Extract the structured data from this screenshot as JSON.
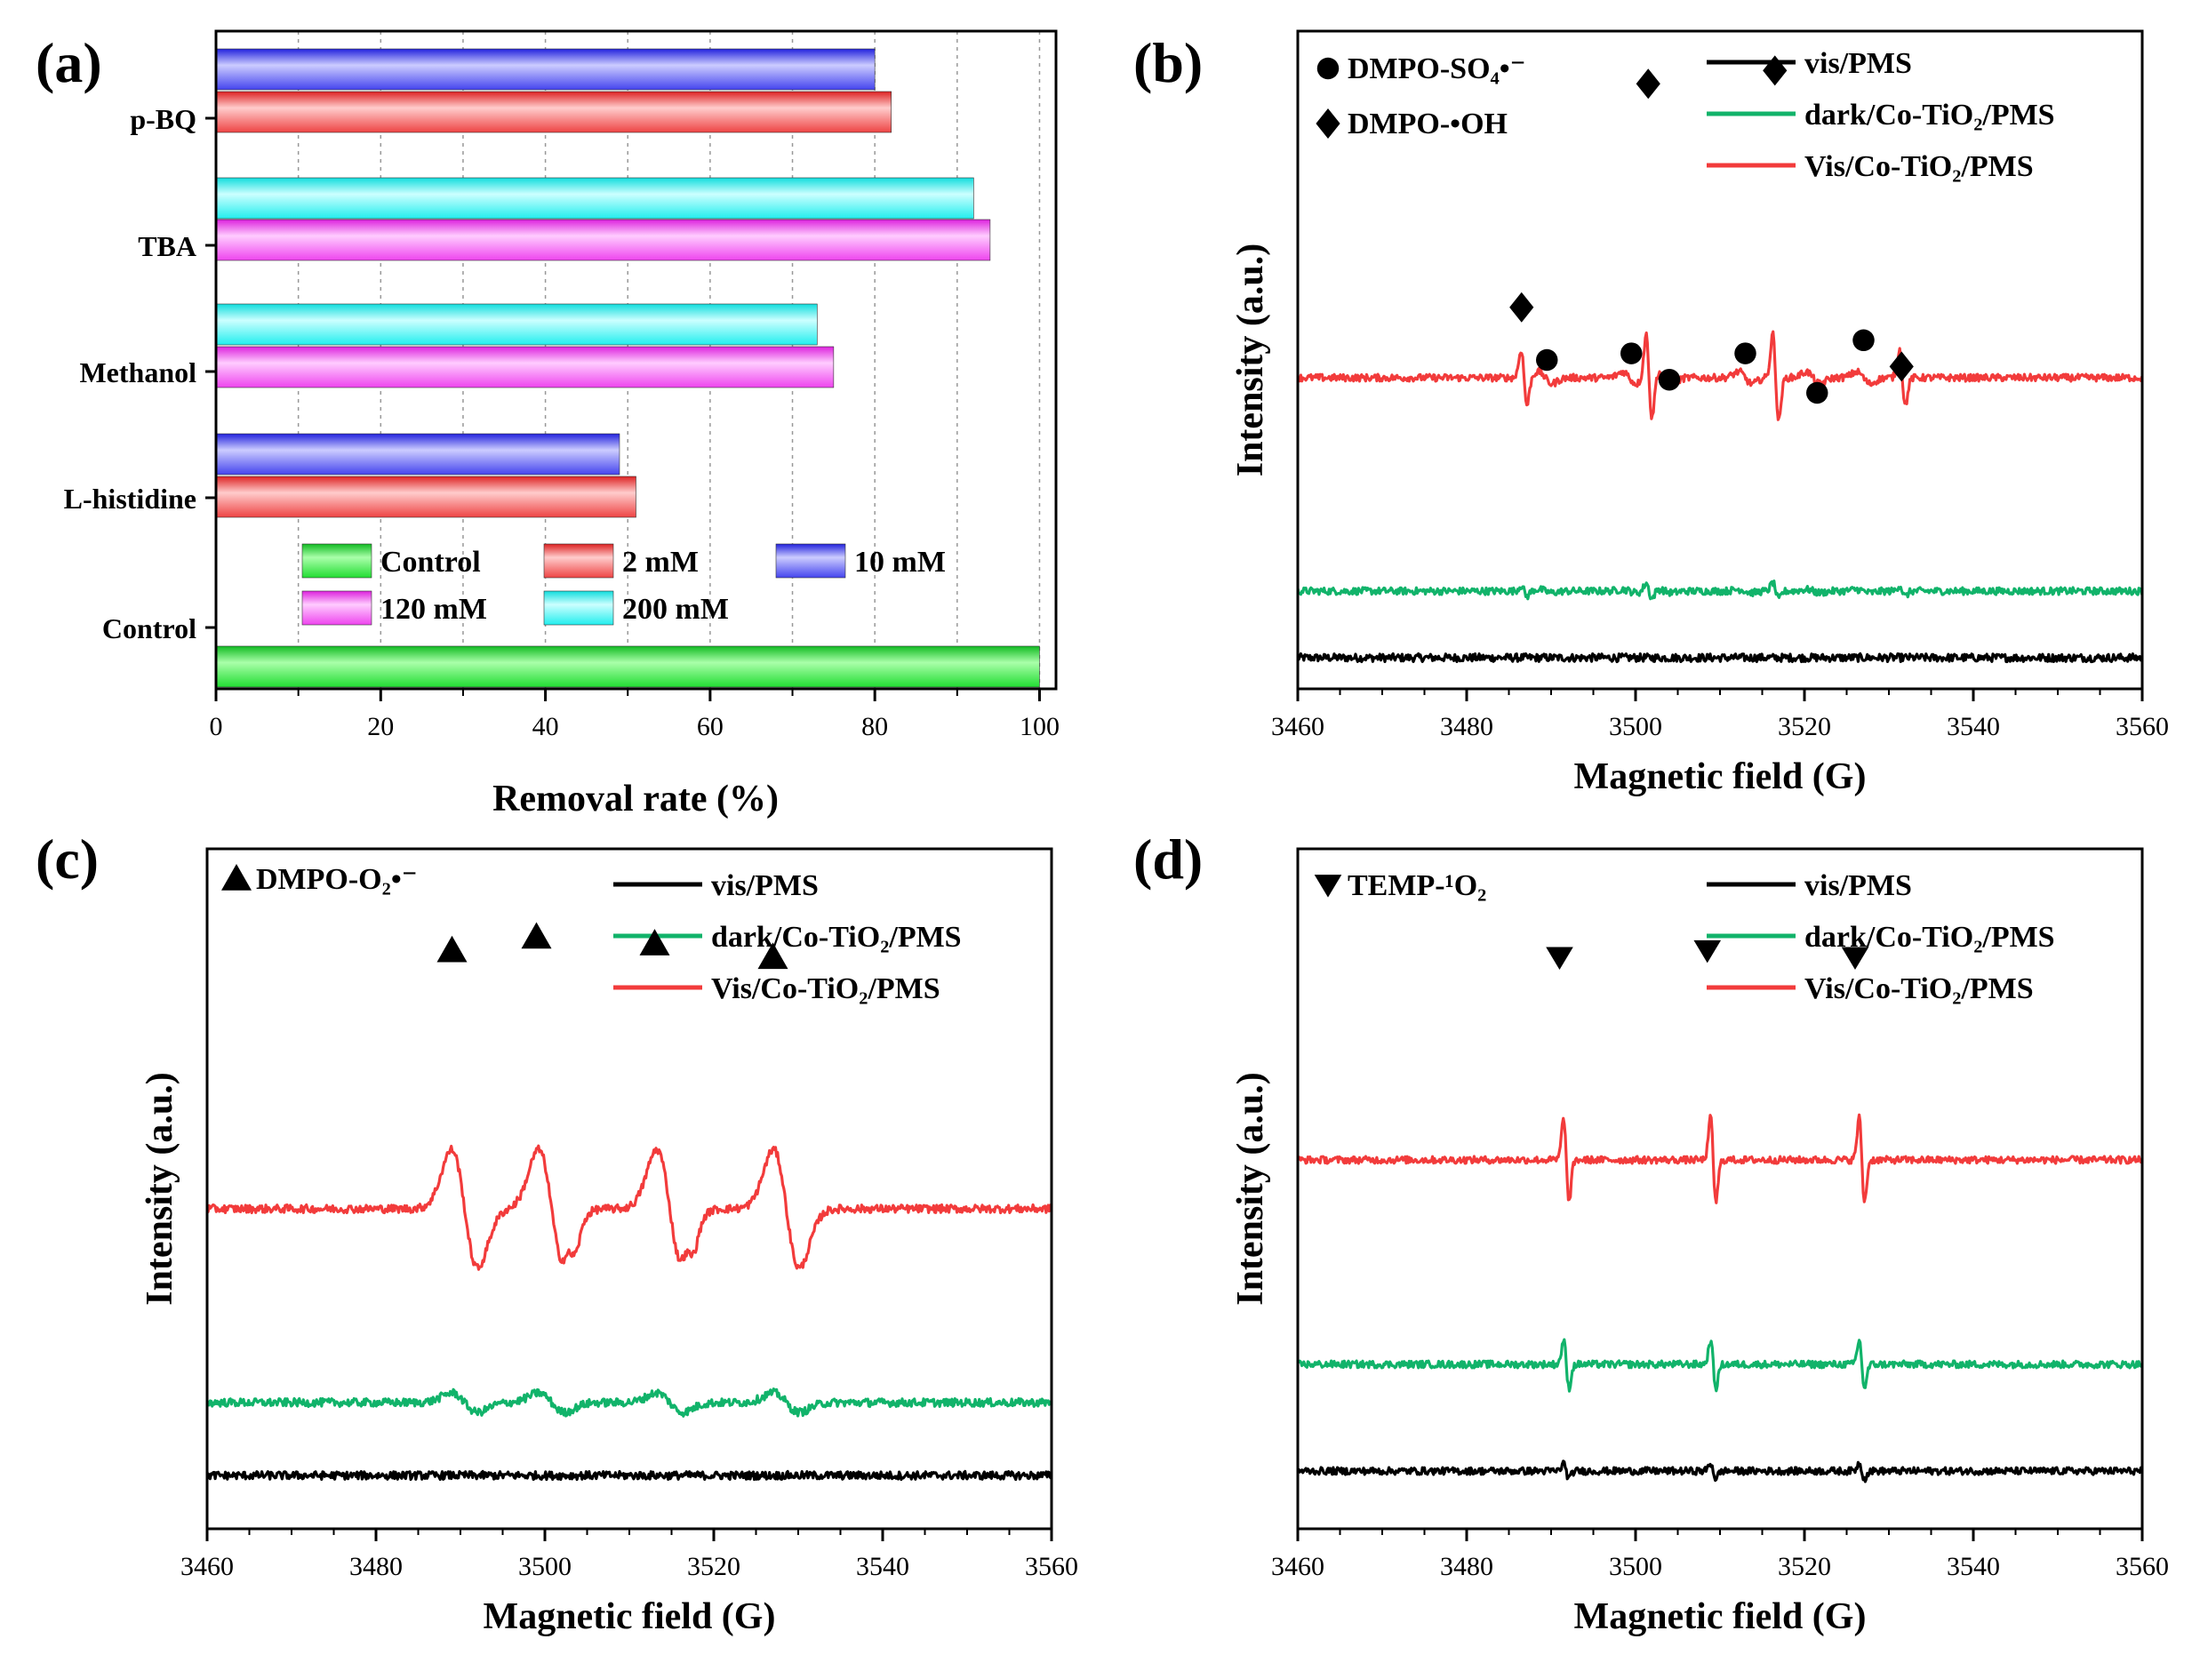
{
  "colors": {
    "green": "#22dd33",
    "red": "#ee4444",
    "blue": "#4444ee",
    "magenta": "#ee44ee",
    "cyan": "#22eeee",
    "trace_black": "#000000",
    "trace_green": "#11b36a",
    "trace_red": "#f23b3b"
  },
  "chart_data": [
    {
      "id": "a",
      "panel_label": "(a)",
      "type": "bar",
      "orientation": "horizontal",
      "xlabel": "Removal rate (%)",
      "xlim": [
        0,
        102
      ],
      "xticks": [
        "0",
        "20",
        "40",
        "60",
        "80",
        "100"
      ],
      "categories": [
        "Control",
        "L-histidine",
        "Methanol",
        "TBA",
        "p-BQ"
      ],
      "bars": [
        {
          "category": "Control",
          "series": "Control",
          "value": 100
        },
        {
          "category": "L-histidine",
          "series": "2 mM",
          "value": 51
        },
        {
          "category": "L-histidine",
          "series": "10 mM",
          "value": 49
        },
        {
          "category": "Methanol",
          "series": "120 mM",
          "value": 75
        },
        {
          "category": "Methanol",
          "series": "200 mM",
          "value": 73
        },
        {
          "category": "TBA",
          "series": "120 mM",
          "value": 94
        },
        {
          "category": "TBA",
          "series": "200 mM",
          "value": 92
        },
        {
          "category": "p-BQ",
          "series": "2 mM",
          "value": 82
        },
        {
          "category": "p-BQ",
          "series": "10 mM",
          "value": 80
        }
      ],
      "legend": [
        {
          "label": "Control",
          "color": "#22dd33"
        },
        {
          "label": "2 mM",
          "color": "#ee4444"
        },
        {
          "label": "10 mM",
          "color": "#4444ee"
        },
        {
          "label": "120 mM",
          "color": "#ee44ee"
        },
        {
          "label": "200 mM",
          "color": "#22eeee"
        }
      ]
    },
    {
      "id": "b",
      "panel_label": "(b)",
      "type": "line",
      "xlabel": "Magnetic field (G)",
      "ylabel": "Intensity (a.u.)",
      "xlim": [
        3460,
        3560
      ],
      "xticks": [
        "3460",
        "3480",
        "3500",
        "3520",
        "3540",
        "3560"
      ],
      "series": [
        {
          "name": "vis/PMS",
          "color": "#000000"
        },
        {
          "name": "dark/Co-TiO₂/PMS",
          "color": "#11b36a"
        },
        {
          "name": "Vis/Co-TiO₂/PMS",
          "color": "#f23b3b"
        }
      ],
      "species_legend": [
        {
          "marker": "circle",
          "label": "DMPO-SO₄•⁻"
        },
        {
          "marker": "diamond",
          "label": "DMPO-•OH"
        }
      ],
      "markers": [
        {
          "type": "diamond",
          "x": 3486.5,
          "level": 0.58
        },
        {
          "type": "circle",
          "x": 3489.5,
          "level": 0.5
        },
        {
          "type": "circle",
          "x": 3499.5,
          "level": 0.51
        },
        {
          "type": "diamond",
          "x": 3501.5,
          "level": 0.92
        },
        {
          "type": "circle",
          "x": 3504,
          "level": 0.47
        },
        {
          "type": "circle",
          "x": 3513,
          "level": 0.51
        },
        {
          "type": "diamond",
          "x": 3516.5,
          "level": 0.94
        },
        {
          "type": "circle",
          "x": 3521.5,
          "level": 0.45
        },
        {
          "type": "circle",
          "x": 3527,
          "level": 0.53
        },
        {
          "type": "diamond",
          "x": 3531.5,
          "level": 0.49
        }
      ]
    },
    {
      "id": "c",
      "panel_label": "(c)",
      "type": "line",
      "xlabel": "Magnetic field (G)",
      "ylabel": "Intensity (a.u.)",
      "xlim": [
        3460,
        3560
      ],
      "xticks": [
        "3460",
        "3480",
        "3500",
        "3520",
        "3540",
        "3560"
      ],
      "series": [
        {
          "name": "vis/PMS",
          "color": "#000000"
        },
        {
          "name": "dark/Co-TiO₂/PMS",
          "color": "#11b36a"
        },
        {
          "name": "Vis/Co-TiO₂/PMS",
          "color": "#f23b3b"
        }
      ],
      "species_legend": [
        {
          "marker": "triangle-up",
          "label": "DMPO-O₂•⁻"
        }
      ],
      "markers": [
        {
          "type": "triangle-up",
          "x": 3489,
          "level": 0.85
        },
        {
          "type": "triangle-up",
          "x": 3499,
          "level": 0.87
        },
        {
          "type": "triangle-up",
          "x": 3513,
          "level": 0.86
        },
        {
          "type": "triangle-up",
          "x": 3527,
          "level": 0.84
        }
      ]
    },
    {
      "id": "d",
      "panel_label": "(d)",
      "type": "line",
      "xlabel": "Magnetic field (G)",
      "ylabel": "Intensity (a.u.)",
      "xlim": [
        3460,
        3560
      ],
      "xticks": [
        "3460",
        "3480",
        "3500",
        "3520",
        "3540",
        "3560"
      ],
      "series": [
        {
          "name": "vis/PMS",
          "color": "#000000"
        },
        {
          "name": "dark/Co-TiO₂/PMS",
          "color": "#11b36a"
        },
        {
          "name": "Vis/Co-TiO₂/PMS",
          "color": "#f23b3b"
        }
      ],
      "species_legend": [
        {
          "marker": "triangle-down",
          "label": "TEMP-¹O₂"
        }
      ],
      "markers": [
        {
          "type": "triangle-down",
          "x": 3491,
          "level": 0.84
        },
        {
          "type": "triangle-down",
          "x": 3508.5,
          "level": 0.85
        },
        {
          "type": "triangle-down",
          "x": 3526,
          "level": 0.84
        }
      ]
    }
  ]
}
